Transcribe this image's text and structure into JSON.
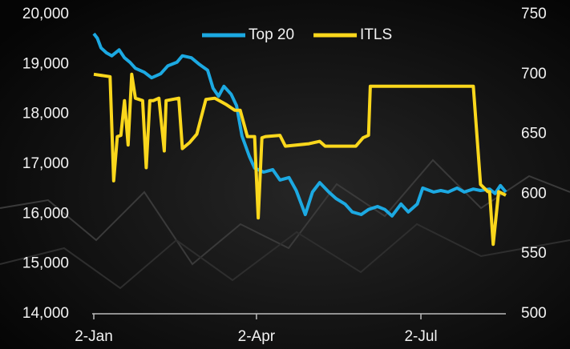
{
  "chart_data": {
    "type": "line",
    "series": [
      {
        "name": "Top 20",
        "color": "#1ca9e2",
        "x": [
          0,
          2,
          4,
          7,
          10,
          14,
          17,
          20,
          23,
          28,
          32,
          37,
          41,
          46,
          49,
          54,
          58,
          63,
          66,
          69,
          72,
          76,
          79,
          82,
          86,
          89,
          94,
          99,
          103,
          108,
          112,
          117,
          121,
          125,
          130,
          134,
          139,
          143,
          148,
          152,
          157,
          161,
          165,
          170,
          174,
          179,
          182,
          188,
          192,
          196,
          201,
          205,
          210,
          214,
          219,
          222,
          225,
          228
        ],
        "values": [
          19615,
          19520,
          19330,
          19230,
          19170,
          19290,
          19130,
          19040,
          18920,
          18840,
          18730,
          18810,
          18970,
          19040,
          19170,
          19130,
          19010,
          18880,
          18520,
          18360,
          18560,
          18400,
          18170,
          17560,
          17160,
          16920,
          16840,
          16890,
          16680,
          16730,
          16470,
          15990,
          16440,
          16630,
          16440,
          16310,
          16200,
          16040,
          15990,
          16090,
          16150,
          16090,
          15960,
          16200,
          16040,
          16200,
          16520,
          16440,
          16470,
          16440,
          16520,
          16440,
          16500,
          16470,
          16500,
          16410,
          16570,
          16440
        ]
      },
      {
        "name": "ITLS",
        "color": "#fad71c",
        "axis": "y2",
        "x": [
          0,
          9,
          11,
          13,
          15,
          17,
          19,
          21,
          23,
          27,
          29,
          31,
          33,
          36,
          39,
          40,
          47,
          49,
          53,
          57,
          62,
          67,
          73,
          78,
          81,
          85,
          89,
          91,
          93,
          95,
          103,
          106,
          119,
          125,
          128,
          145,
          149,
          152,
          153,
          210,
          214,
          218,
          219,
          221,
          224,
          228
        ],
        "values": [
          700,
          698,
          611,
          648,
          649,
          678,
          641,
          700,
          680,
          678,
          622,
          678,
          678,
          680,
          636,
          678,
          680,
          638,
          643,
          650,
          679,
          680,
          675,
          670,
          670,
          648,
          648,
          580,
          647,
          648,
          649,
          640,
          642,
          644,
          640,
          640,
          647,
          649,
          690,
          690,
          608,
          602,
          602,
          558,
          602,
          599
        ]
      }
    ],
    "xlim": [
      0,
      228
    ],
    "xticks": [
      {
        "value": 0,
        "label": "2-Jan"
      },
      {
        "value": 90,
        "label": "2-Apr"
      },
      {
        "value": 181,
        "label": "2-Jul"
      }
    ],
    "ylim": [
      14000,
      20000
    ],
    "yticks": [
      {
        "value": 14000,
        "label": "14,000"
      },
      {
        "value": 15000,
        "label": "15,000"
      },
      {
        "value": 16000,
        "label": "16,000"
      },
      {
        "value": 17000,
        "label": "17,000"
      },
      {
        "value": 18000,
        "label": "18,000"
      },
      {
        "value": 19000,
        "label": "19,000"
      },
      {
        "value": 20000,
        "label": "20,000"
      }
    ],
    "y2lim": [
      500,
      750
    ],
    "y2ticks": [
      500,
      550,
      600,
      650,
      700,
      750
    ],
    "legend": "top"
  }
}
